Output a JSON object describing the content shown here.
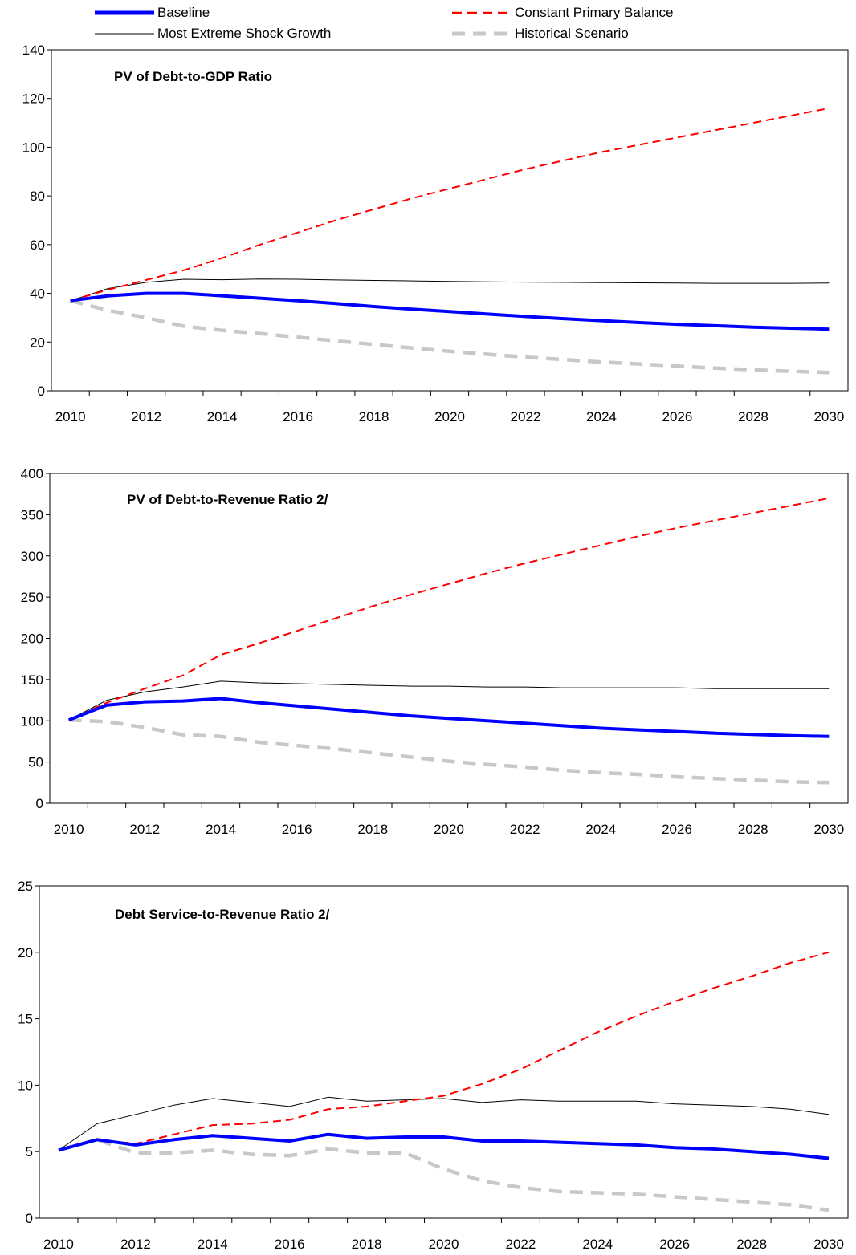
{
  "legend": [
    {
      "name": "Baseline",
      "color": "#0000ff",
      "dash": "solid",
      "weight": "thick"
    },
    {
      "name": "Constant Primary Balance",
      "color": "#ff0000",
      "dash": "dashed",
      "weight": "medium"
    },
    {
      "name": "Most Extreme Shock Growth",
      "color": "#000000",
      "dash": "solid",
      "weight": "thin"
    },
    {
      "name": "Historical Scenario",
      "color": "#c8c8c8",
      "dash": "dashed",
      "weight": "thick"
    }
  ],
  "chart_data": [
    {
      "type": "line",
      "title": "PV of Debt-to-GDP Ratio",
      "xlabel": "",
      "ylabel": "",
      "ylim": [
        0,
        140
      ],
      "yticks": [
        "0",
        "20",
        "40",
        "60",
        "80",
        "100",
        "120",
        "140"
      ],
      "xticks": [
        "2010",
        "2012",
        "2014",
        "2016",
        "2018",
        "2020",
        "2022",
        "2024",
        "2026",
        "2028",
        "2030"
      ],
      "x": [
        2010,
        2011,
        2012,
        2013,
        2014,
        2015,
        2016,
        2017,
        2018,
        2019,
        2020,
        2021,
        2022,
        2023,
        2024,
        2025,
        2026,
        2027,
        2028,
        2029,
        2030
      ],
      "series": [
        {
          "name": "Baseline",
          "values": [
            37,
            39,
            40,
            40,
            39,
            38,
            37,
            35.8,
            34.6,
            33.5,
            32.5,
            31.5,
            30.5,
            29.6,
            28.8,
            28,
            27.3,
            26.7,
            26.1,
            25.7,
            25.3
          ]
        },
        {
          "name": "Constant Primary Balance",
          "values": [
            37,
            41.5,
            45.5,
            49.5,
            54.5,
            60,
            65,
            70,
            74.5,
            79,
            83,
            87,
            91,
            94.5,
            98,
            101,
            104,
            107,
            110,
            113,
            116
          ]
        },
        {
          "name": "Most Extreme Shock Growth",
          "values": [
            37,
            42,
            44.5,
            45.8,
            45.6,
            45.9,
            45.8,
            45.5,
            45.3,
            45.1,
            44.9,
            44.7,
            44.6,
            44.5,
            44.4,
            44.3,
            44.2,
            44.1,
            44.1,
            44.1,
            44.2
          ]
        },
        {
          "name": "Historical Scenario",
          "values": [
            37,
            33,
            30,
            26.5,
            24.8,
            23.5,
            22,
            20.5,
            19,
            17.6,
            16.2,
            15,
            13.8,
            12.8,
            11.8,
            11,
            10.1,
            9.3,
            8.6,
            8,
            7.5
          ]
        }
      ]
    },
    {
      "type": "line",
      "title": "PV of Debt-to-Revenue Ratio 2/",
      "xlabel": "",
      "ylabel": "",
      "ylim": [
        0,
        400
      ],
      "yticks": [
        "0",
        "50",
        "100",
        "150",
        "200",
        "250",
        "300",
        "350",
        "400"
      ],
      "xticks": [
        "2010",
        "2012",
        "2014",
        "2016",
        "2018",
        "2020",
        "2022",
        "2024",
        "2026",
        "2028",
        "2030"
      ],
      "x": [
        2010,
        2011,
        2012,
        2013,
        2014,
        2015,
        2016,
        2017,
        2018,
        2019,
        2020,
        2021,
        2022,
        2023,
        2024,
        2025,
        2026,
        2027,
        2028,
        2029,
        2030
      ],
      "series": [
        {
          "name": "Baseline",
          "values": [
            101,
            119,
            123,
            124,
            127,
            122,
            118,
            114,
            110,
            106,
            103,
            100,
            97,
            94,
            91,
            89,
            87,
            85,
            83.5,
            82,
            81
          ]
        },
        {
          "name": "Constant Primary Balance",
          "values": [
            101,
            122,
            139,
            155,
            180,
            194,
            209,
            224,
            239,
            253,
            266,
            279,
            291,
            302,
            313,
            324,
            334,
            343,
            352,
            361,
            370
          ]
        },
        {
          "name": "Most Extreme Shock Growth",
          "values": [
            101,
            125,
            135,
            141,
            148,
            146,
            145,
            144,
            143,
            142,
            142,
            141,
            141,
            140,
            140,
            140,
            140,
            139,
            139,
            139,
            139
          ]
        },
        {
          "name": "Historical Scenario",
          "values": [
            101,
            99,
            92,
            83,
            81,
            74,
            70,
            66,
            61,
            56,
            51,
            47,
            44,
            40,
            37,
            35,
            32,
            30,
            28,
            26,
            25
          ]
        }
      ]
    },
    {
      "type": "line",
      "title": "Debt Service-to-Revenue Ratio 2/",
      "xlabel": "",
      "ylabel": "",
      "ylim": [
        0,
        25
      ],
      "yticks": [
        "0",
        "5",
        "10",
        "15",
        "20",
        "25"
      ],
      "xticks": [
        "2010",
        "2012",
        "2014",
        "2016",
        "2018",
        "2020",
        "2022",
        "2024",
        "2026",
        "2028",
        "2030"
      ],
      "x": [
        2010,
        2011,
        2012,
        2013,
        2014,
        2015,
        2016,
        2017,
        2018,
        2019,
        2020,
        2021,
        2022,
        2023,
        2024,
        2025,
        2026,
        2027,
        2028,
        2029,
        2030
      ],
      "series": [
        {
          "name": "Baseline",
          "values": [
            5.1,
            5.9,
            5.5,
            5.9,
            6.2,
            6.0,
            5.8,
            6.3,
            6.0,
            6.1,
            6.1,
            5.8,
            5.8,
            5.7,
            5.6,
            5.5,
            5.3,
            5.2,
            5.0,
            4.8,
            4.5
          ]
        },
        {
          "name": "Constant Primary Balance",
          "values": [
            5.1,
            5.9,
            5.6,
            6.3,
            7.0,
            7.1,
            7.4,
            8.2,
            8.4,
            8.8,
            9.2,
            10.1,
            11.2,
            12.6,
            14.0,
            15.2,
            16.3,
            17.3,
            18.2,
            19.2,
            20.0
          ]
        },
        {
          "name": "Most Extreme Shock Growth",
          "values": [
            5.1,
            7.1,
            7.8,
            8.5,
            9.0,
            8.7,
            8.4,
            9.1,
            8.8,
            8.9,
            9.0,
            8.7,
            8.9,
            8.8,
            8.8,
            8.8,
            8.6,
            8.5,
            8.4,
            8.2,
            7.8
          ]
        },
        {
          "name": "Historical Scenario",
          "values": [
            5.1,
            5.9,
            4.9,
            4.9,
            5.1,
            4.8,
            4.7,
            5.2,
            4.9,
            4.9,
            3.7,
            2.8,
            2.3,
            2.0,
            1.9,
            1.8,
            1.6,
            1.4,
            1.2,
            1.0,
            0.6
          ]
        }
      ]
    }
  ]
}
